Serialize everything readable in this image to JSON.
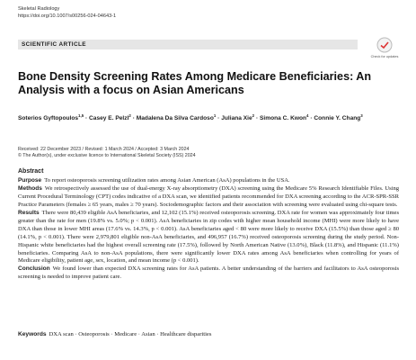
{
  "header": {
    "journal": "Skeletal Radiology",
    "doi": "https://doi.org/10.1007/s00256-024-04643-1"
  },
  "section_label": "SCIENTIFIC ARTICLE",
  "badge": "Check for updates",
  "title": "Bone Density Screening Rates Among Medicare Beneficiaries: An Analysis with a focus on Asian Americans",
  "authors": {
    "separator": "·",
    "list": [
      {
        "name": "Soterios Gyftopoulos",
        "affil": "1,5"
      },
      {
        "name": "Casey E. Pelzl",
        "affil": "2"
      },
      {
        "name": "Madalena Da Silva Cardoso",
        "affil": "1"
      },
      {
        "name": "Juliana Xie",
        "affil": "2"
      },
      {
        "name": "Simona C. Kwon",
        "affil": "4"
      },
      {
        "name": "Connie Y. Chang",
        "affil": "3"
      }
    ]
  },
  "dates": "Received: 22 December 2023 / Revised: 1 March 2024 / Accepted: 3 March 2024",
  "copyright": "© The Author(s), under exclusive licence to International Skeletal Society (ISS) 2024",
  "abstract": {
    "heading": "Abstract",
    "sections": [
      {
        "label": "Purpose",
        "text": "To report osteoporosis screening utilization rates among Asian American (AsA) populations in the USA."
      },
      {
        "label": "Methods",
        "text": "We retrospectively assessed the use of dual-energy X-ray absorptiometry (DXA) screening using the Medicare 5% Research Identifiable Files. Using Current Procedural Terminology (CPT) codes indicative of a DXA scan, we identified patients recommended for DXA screening according to the ACR-SPR-SSR Practice Parameters (females ≥ 65 years, males ≥ 70 years). Sociodemographic factors and their association with screening were evaluated using chi-square tests."
      },
      {
        "label": "Results",
        "text": "There were 80,439 eligible AsA beneficiaries, and 12,102 (15.1%) received osteoporosis screening. DXA rate for women was approximately four times greater than the rate for men (19.8% vs. 5.0%; p < 0.001). AsA beneficiaries in zip codes with higher mean household income (MHI) were more likely to have DXA than those in lower MHI areas (17.6% vs. 14.3%, p < 0.001). AsA beneficiaries aged < 80 were more likely to receive DXA (15.5%) than those aged ≥ 80 (14.1%, p < 0.001). There were 2,979,801 eligible non-AsA beneficiaries, and 496,957 (16.7%) received osteoporosis screening during the study period. Non-Hispanic white beneficiaries had the highest overall screening rate (17.5%), followed by North American Native (13.0%), Black (11.8%), and Hispanic (11.1%) beneficiaries. Comparing AsA to non-AsA populations, there were significantly lower DXA rates among AsA beneficiaries when controlling for years of Medicare eligibility, patient age, sex, location, and mean income (p < 0.001)."
      },
      {
        "label": "Conclusion",
        "text": "We found lower than expected DXA screening rates for AsA patients. A better understanding of the barriers and facilitators to AsA osteoporosis screening is needed to improve patient care."
      }
    ]
  },
  "keywords": {
    "label": "Keywords",
    "text": "DXA scan · Osteoporosis · Medicare · Asian · Healthcare disparities"
  }
}
